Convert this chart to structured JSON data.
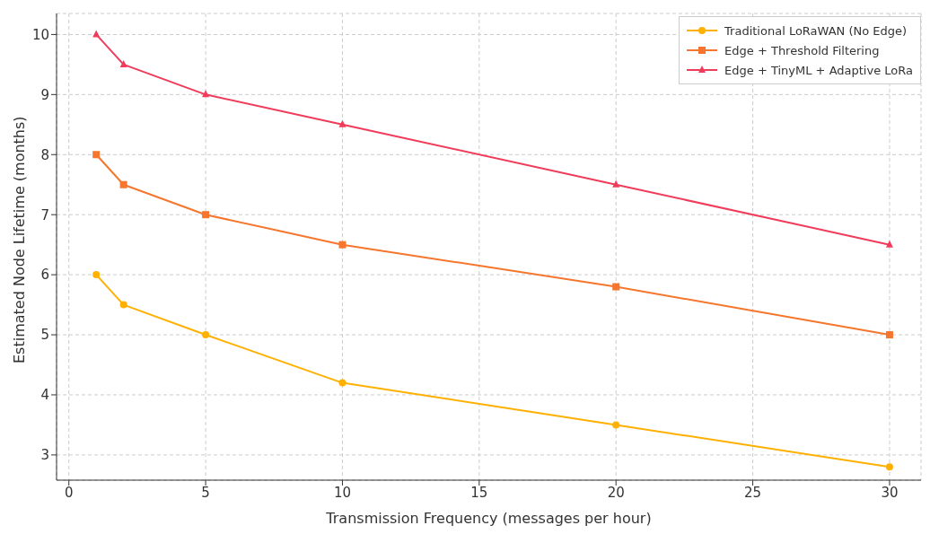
{
  "chart_data": {
    "type": "line",
    "xlabel": "Transmission Frequency (messages per hour)",
    "ylabel": "Estimated Node Lifetime (months)",
    "x": [
      1,
      2,
      5,
      10,
      20,
      30
    ],
    "series": [
      {
        "name": "Traditional LoRaWAN (No Edge)",
        "color": "#ffb000",
        "marker": "circle",
        "values": [
          6,
          5.5,
          5,
          4.2,
          3.5,
          2.8
        ]
      },
      {
        "name": "Edge + Threshold Filtering",
        "color": "#f5762c",
        "marker": "square",
        "values": [
          8,
          7.5,
          7,
          6.5,
          5.8,
          5.0
        ]
      },
      {
        "name": "Edge + TinyML + Adaptive LoRa",
        "color": "#f03c5a",
        "marker": "triangle",
        "values": [
          10,
          9.5,
          9,
          8.5,
          7.5,
          6.5
        ]
      }
    ],
    "xlim": [
      -0.45,
      31.15
    ],
    "xticks": [
      0,
      5,
      10,
      15,
      20,
      25,
      30
    ],
    "ylim": [
      2.58,
      10.35
    ],
    "yticks": [
      3,
      4,
      5,
      6,
      7,
      8,
      9,
      10
    ],
    "grid": true,
    "legend": "top right",
    "line_style": "solid"
  }
}
